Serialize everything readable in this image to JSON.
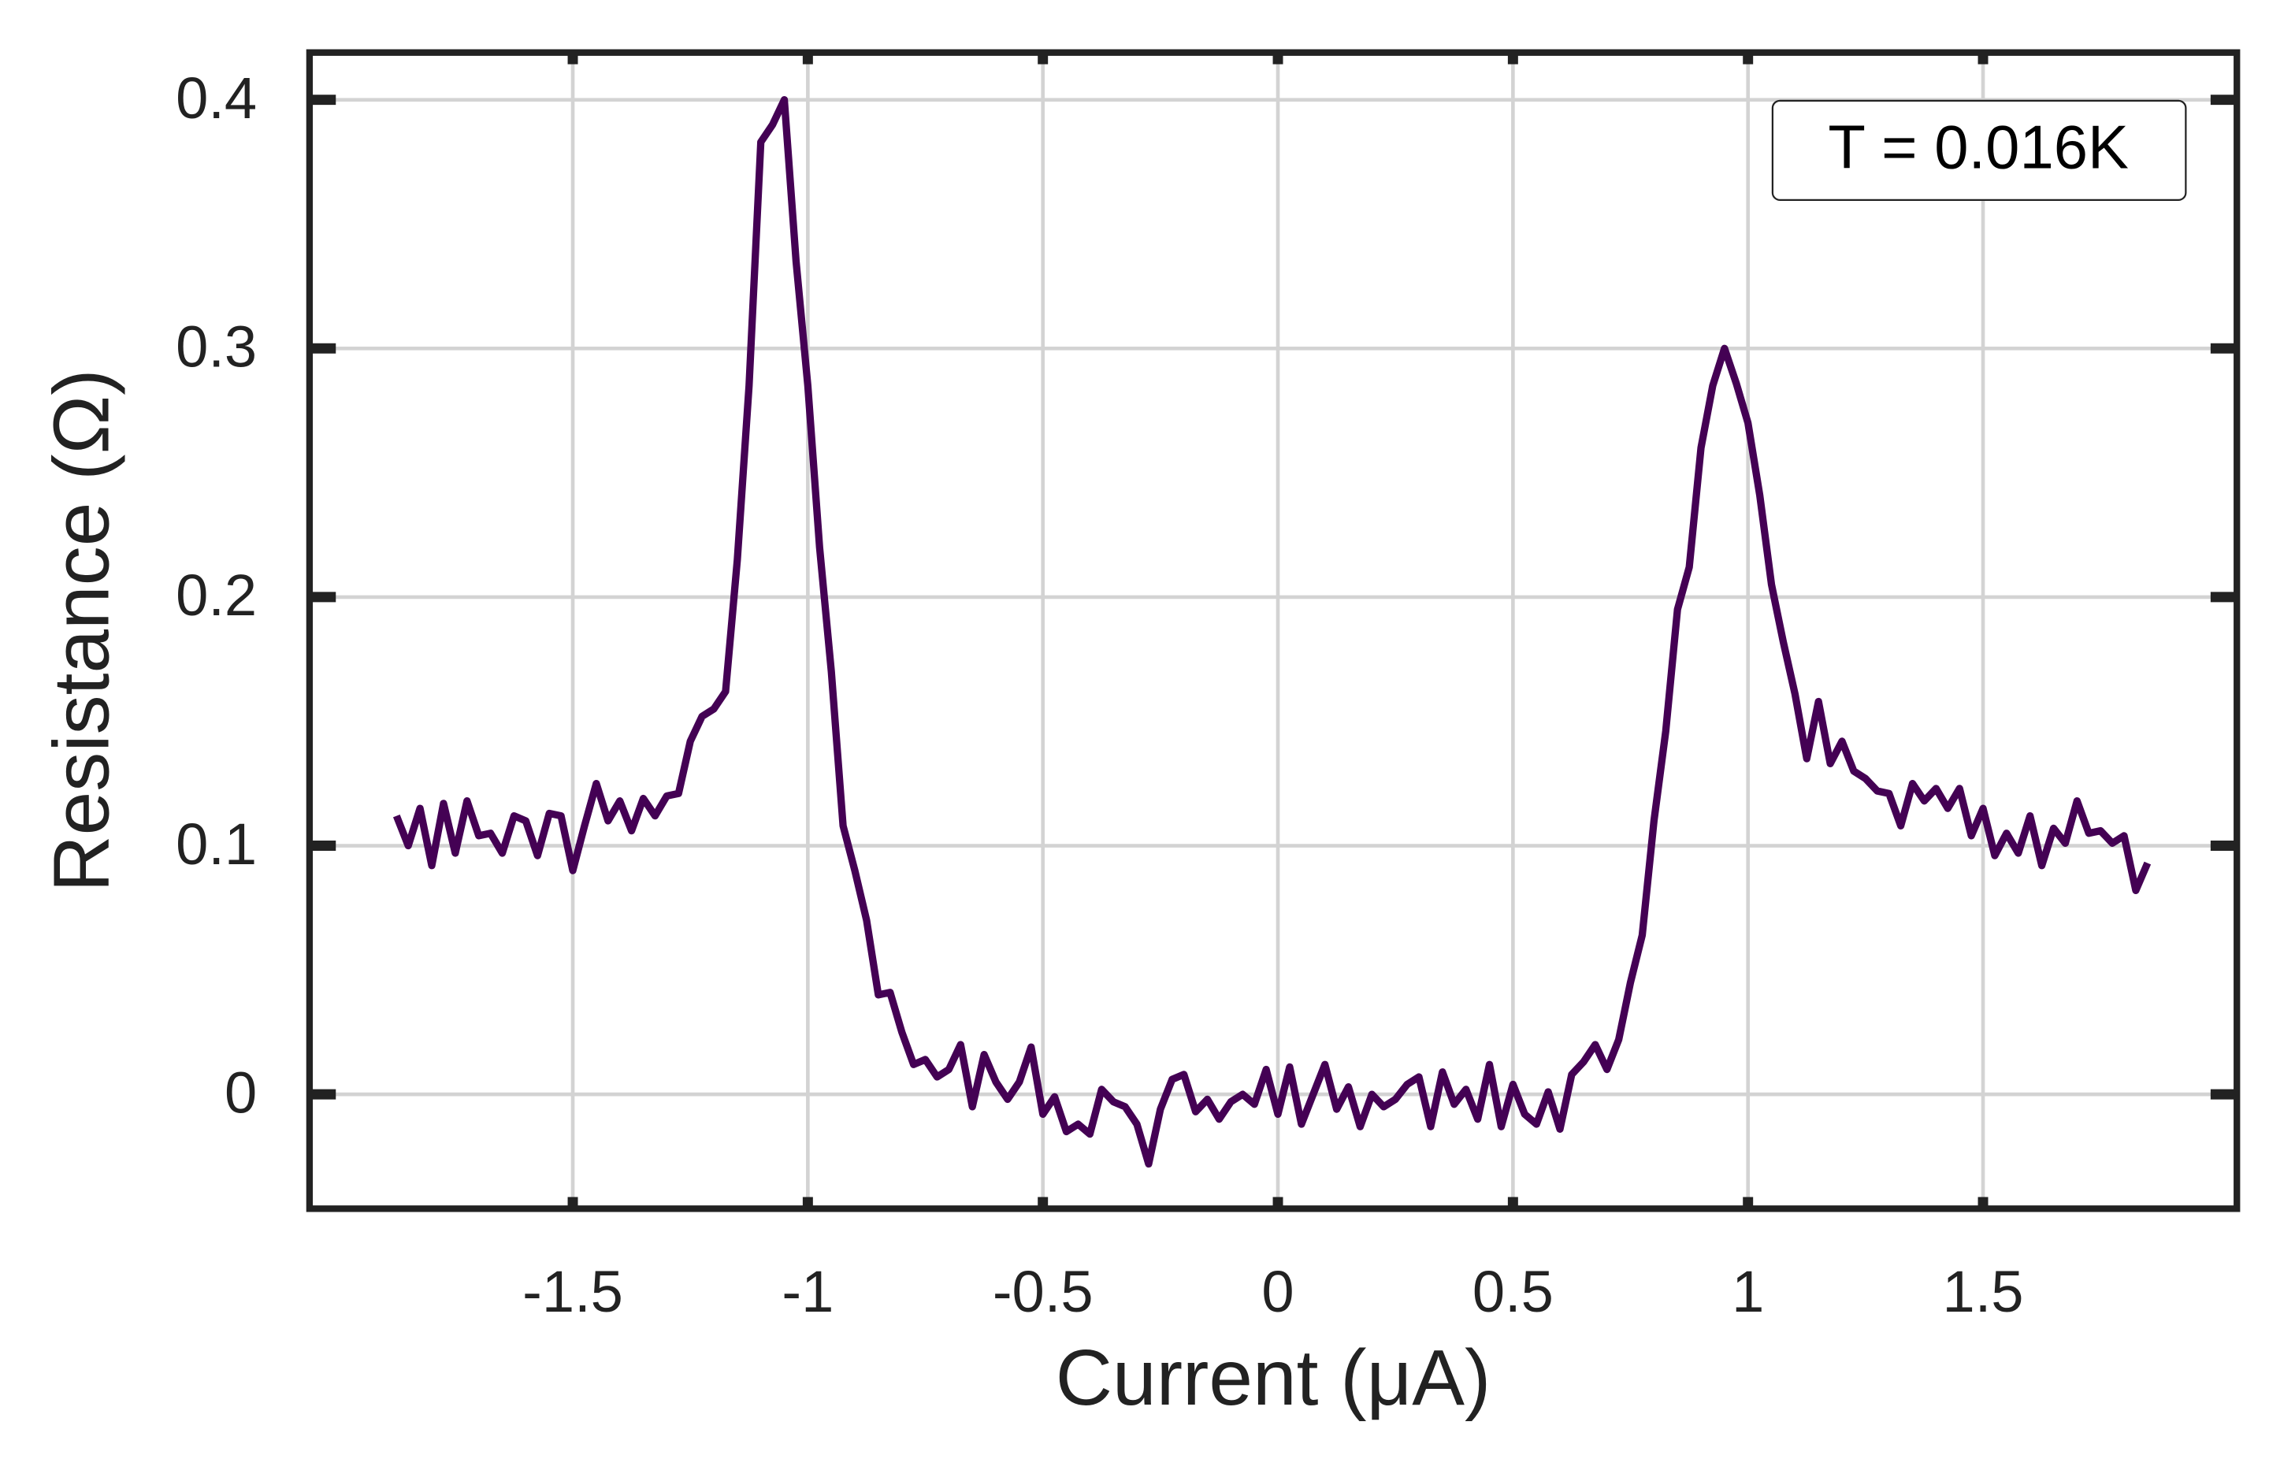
{
  "chart_data": {
    "type": "line",
    "xlabel": "Current (μA)",
    "ylabel": "Resistance (Ω)",
    "annotation": "T = 0.016K",
    "xlim": [
      -2.06,
      2.04
    ],
    "ylim": [
      -0.046,
      0.419
    ],
    "xticks": [
      -1.5,
      -1,
      -0.5,
      0,
      0.5,
      1,
      1.5
    ],
    "yticks": [
      0,
      0.1,
      0.2,
      0.3,
      0.4
    ],
    "grid": true,
    "series": [
      {
        "color": "#440154",
        "x": [
          -1.875,
          -1.85,
          -1.825,
          -1.8,
          -1.775,
          -1.75,
          -1.725,
          -1.7,
          -1.675,
          -1.65,
          -1.625,
          -1.6,
          -1.575,
          -1.55,
          -1.525,
          -1.5,
          -1.475,
          -1.45,
          -1.425,
          -1.4,
          -1.375,
          -1.35,
          -1.325,
          -1.3,
          -1.275,
          -1.25,
          -1.225,
          -1.2,
          -1.175,
          -1.15,
          -1.125,
          -1.1,
          -1.075,
          -1.05,
          -1.025,
          -1.0,
          -0.975,
          -0.95,
          -0.925,
          -0.9,
          -0.875,
          -0.85,
          -0.825,
          -0.8,
          -0.775,
          -0.75,
          -0.725,
          -0.7,
          -0.675,
          -0.65,
          -0.625,
          -0.6,
          -0.575,
          -0.55,
          -0.525,
          -0.5,
          -0.475,
          -0.45,
          -0.425,
          -0.4,
          -0.375,
          -0.35,
          -0.325,
          -0.3,
          -0.275,
          -0.25,
          -0.225,
          -0.2,
          -0.175,
          -0.15,
          -0.125,
          -0.1,
          -0.075,
          -0.05,
          -0.025,
          0,
          0.025,
          0.05,
          0.075,
          0.1,
          0.125,
          0.15,
          0.175,
          0.2,
          0.225,
          0.25,
          0.275,
          0.3,
          0.325,
          0.35,
          0.375,
          0.4,
          0.425,
          0.45,
          0.475,
          0.5,
          0.525,
          0.55,
          0.575,
          0.6,
          0.625,
          0.65,
          0.675,
          0.7,
          0.725,
          0.75,
          0.775,
          0.8,
          0.825,
          0.85,
          0.875,
          0.9,
          0.925,
          0.95,
          0.975,
          1.0,
          1.025,
          1.05,
          1.075,
          1.1,
          1.125,
          1.15,
          1.175,
          1.2,
          1.225,
          1.25,
          1.275,
          1.3,
          1.325,
          1.35,
          1.375,
          1.4,
          1.425,
          1.45,
          1.475,
          1.5,
          1.525,
          1.55,
          1.575,
          1.6,
          1.625,
          1.65,
          1.675,
          1.7,
          1.725,
          1.75,
          1.775,
          1.8,
          1.825,
          1.85
        ],
        "values": [
          0.112,
          0.1,
          0.115,
          0.092,
          0.117,
          0.097,
          0.118,
          0.104,
          0.105,
          0.097,
          0.112,
          0.11,
          0.096,
          0.113,
          0.112,
          0.09,
          0.108,
          0.125,
          0.11,
          0.118,
          0.106,
          0.119,
          0.112,
          0.12,
          0.121,
          0.142,
          0.152,
          0.155,
          0.162,
          0.215,
          0.285,
          0.383,
          0.39,
          0.4,
          0.335,
          0.285,
          0.22,
          0.17,
          0.108,
          0.09,
          0.07,
          0.04,
          0.041,
          0.025,
          0.012,
          0.014,
          0.007,
          0.01,
          0.02,
          -0.005,
          0.016,
          0.005,
          -0.002,
          0.005,
          0.019,
          -0.008,
          -0.001,
          -0.015,
          -0.012,
          -0.016,
          0.002,
          -0.003,
          -0.005,
          -0.012,
          -0.028,
          -0.006,
          0.006,
          0.008,
          -0.007,
          -0.002,
          -0.01,
          -0.003,
          0.0,
          -0.004,
          0.01,
          -0.008,
          0.011,
          -0.012,
          0.0,
          0.012,
          -0.006,
          0.003,
          -0.013,
          0.0,
          -0.005,
          -0.002,
          0.004,
          0.007,
          -0.013,
          0.009,
          -0.004,
          0.002,
          -0.01,
          0.012,
          -0.013,
          0.004,
          -0.008,
          -0.012,
          0.001,
          -0.014,
          0.008,
          0.013,
          0.02,
          0.01,
          0.022,
          0.045,
          0.064,
          0.11,
          0.146,
          0.195,
          0.212,
          0.26,
          0.285,
          0.3,
          0.286,
          0.27,
          0.241,
          0.205,
          0.182,
          0.161,
          0.135,
          0.158,
          0.133,
          0.142,
          0.13,
          0.127,
          0.122,
          0.121,
          0.108,
          0.125,
          0.118,
          0.123,
          0.115,
          0.123,
          0.104,
          0.115,
          0.096,
          0.105,
          0.097,
          0.112,
          0.092,
          0.107,
          0.101,
          0.118,
          0.105,
          0.106,
          0.101,
          0.104,
          0.082,
          0.093
        ]
      }
    ]
  }
}
